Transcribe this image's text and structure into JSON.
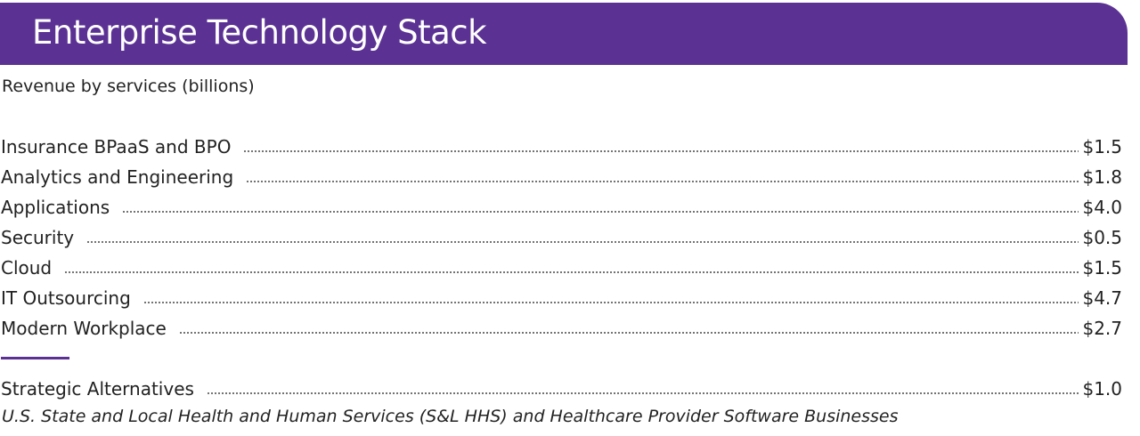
{
  "header": {
    "title": "Enterprise Technology Stack"
  },
  "subtitle": "Revenue by services (billions)",
  "services": [
    {
      "label": "Insurance BPaaS and BPO",
      "value": "$1.5"
    },
    {
      "label": "Analytics and Engineering",
      "value": "$1.8"
    },
    {
      "label": "Applications",
      "value": "$4.0"
    },
    {
      "label": "Security",
      "value": "$0.5"
    },
    {
      "label": "Cloud",
      "value": "$1.5"
    },
    {
      "label": "IT Outsourcing",
      "value": "$4.7"
    },
    {
      "label": "Modern Workplace",
      "value": "$2.7"
    }
  ],
  "strategic": {
    "label": "Strategic Alternatives",
    "value": "$1.0",
    "note": "U.S. State and Local Health and Human Services (S&L HHS) and Healthcare Provider Software Businesses"
  },
  "colors": {
    "accent": "#5b3293",
    "text": "#222222",
    "background": "#ffffff"
  }
}
